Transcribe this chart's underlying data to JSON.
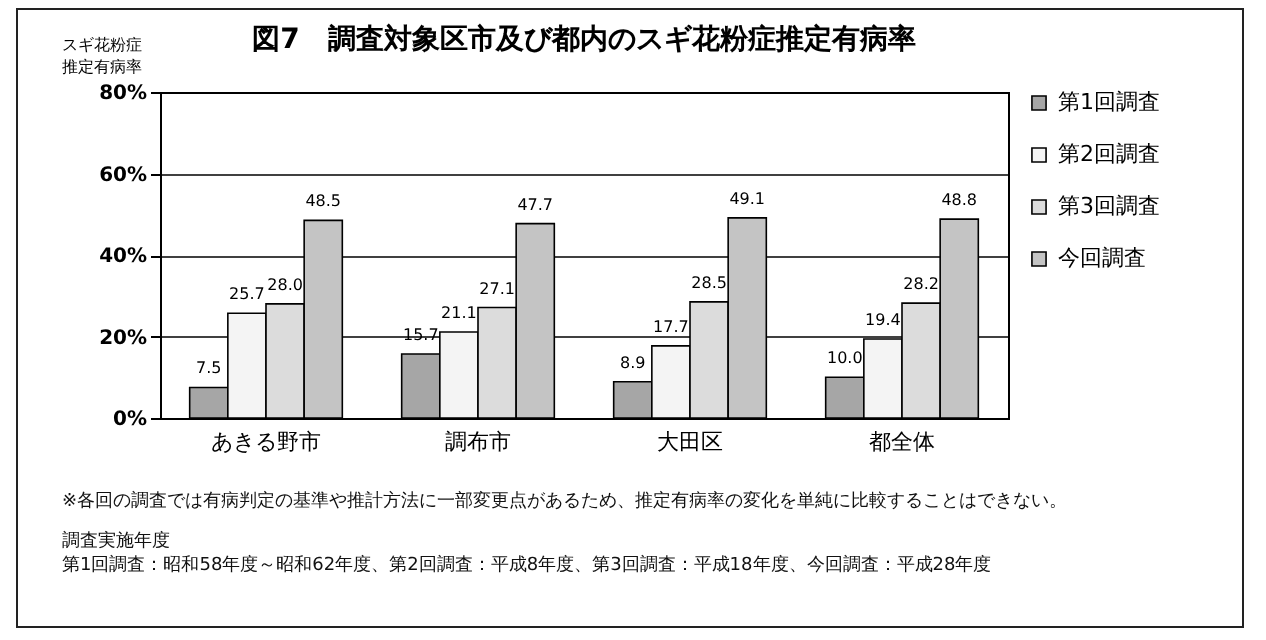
{
  "chart_data": {
    "type": "bar",
    "title": "図7　調査対象区市及び都内のスギ花粉症推定有病率",
    "ylabel": "スギ花粉症推定有病率",
    "categories": [
      "あきる野市",
      "調布市",
      "大田区",
      "都全体"
    ],
    "series": [
      {
        "name": "第1回調査",
        "color": "#a6a6a6",
        "values": [
          7.5,
          15.7,
          8.9,
          10.0
        ],
        "value_labels": [
          "7.5",
          "15.7",
          "8.9",
          "10.0"
        ]
      },
      {
        "name": "第2回調査",
        "color": "#f4f4f4",
        "values": [
          25.7,
          21.1,
          17.7,
          19.4
        ],
        "value_labels": [
          "25.7",
          "21.1",
          "17.7",
          "19.4"
        ]
      },
      {
        "name": "第3回調査",
        "color": "#dcdcdc",
        "values": [
          28.0,
          27.1,
          28.5,
          28.2
        ],
        "value_labels": [
          "28.0",
          "27.1",
          "28.5",
          "28.2"
        ]
      },
      {
        "name": "今回調査",
        "color": "#c4c4c4",
        "values": [
          48.5,
          47.7,
          49.1,
          48.8
        ],
        "value_labels": [
          "48.5",
          "47.7",
          "49.1",
          "48.8"
        ]
      }
    ],
    "ylim": [
      0,
      80
    ],
    "yticks": [
      {
        "value": 0,
        "label": "0%"
      },
      {
        "value": 20,
        "label": "20%"
      },
      {
        "value": 40,
        "label": "40%"
      },
      {
        "value": 60,
        "label": "60%"
      },
      {
        "value": 80,
        "label": "80%"
      }
    ],
    "grid": "y",
    "legend": "right",
    "annotations": [
      "※各回の調査では有病判定の基準や推計方法に一部変更点があるため、推定有病率の変化を単純に比較することはできない。",
      "調査実施年度",
      "第1回調査：昭和58年度～昭和62年度、第2回調査：平成8年度、第3回調査：平成18年度、今回調査：平成28年度"
    ]
  }
}
